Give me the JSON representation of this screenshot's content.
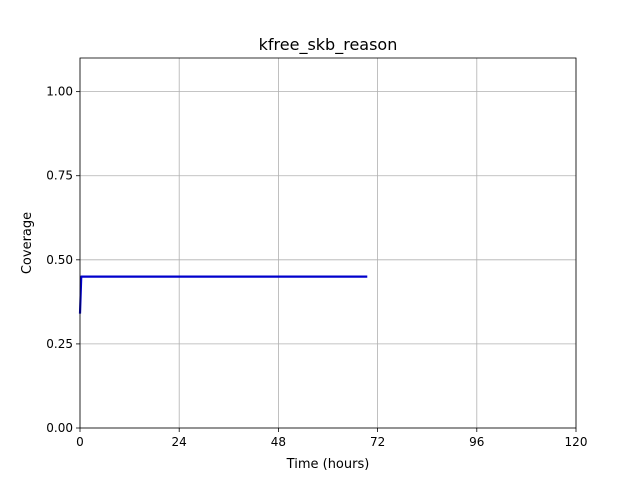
{
  "chart_data": {
    "type": "line",
    "title": "kfree_skb_reason",
    "xlabel": "Time (hours)",
    "ylabel": "Coverage",
    "xlim": [
      0,
      120
    ],
    "ylim": [
      0,
      1.1
    ],
    "xticks": [
      0,
      24,
      48,
      72,
      96,
      120
    ],
    "xtick_labels": [
      "0",
      "24",
      "48",
      "72",
      "96",
      "120"
    ],
    "yticks": [
      0,
      0.25,
      0.5,
      0.75,
      1.0
    ],
    "ytick_labels": [
      "0.00",
      "0.25",
      "0.50",
      "0.75",
      "1.00"
    ],
    "grid": true,
    "series": [
      {
        "color": "#0000cc",
        "x": [
          0,
          0.3,
          1,
          10,
          24,
          48,
          69.5
        ],
        "y": [
          0.34,
          0.45,
          0.45,
          0.45,
          0.45,
          0.45,
          0.45
        ]
      }
    ]
  }
}
